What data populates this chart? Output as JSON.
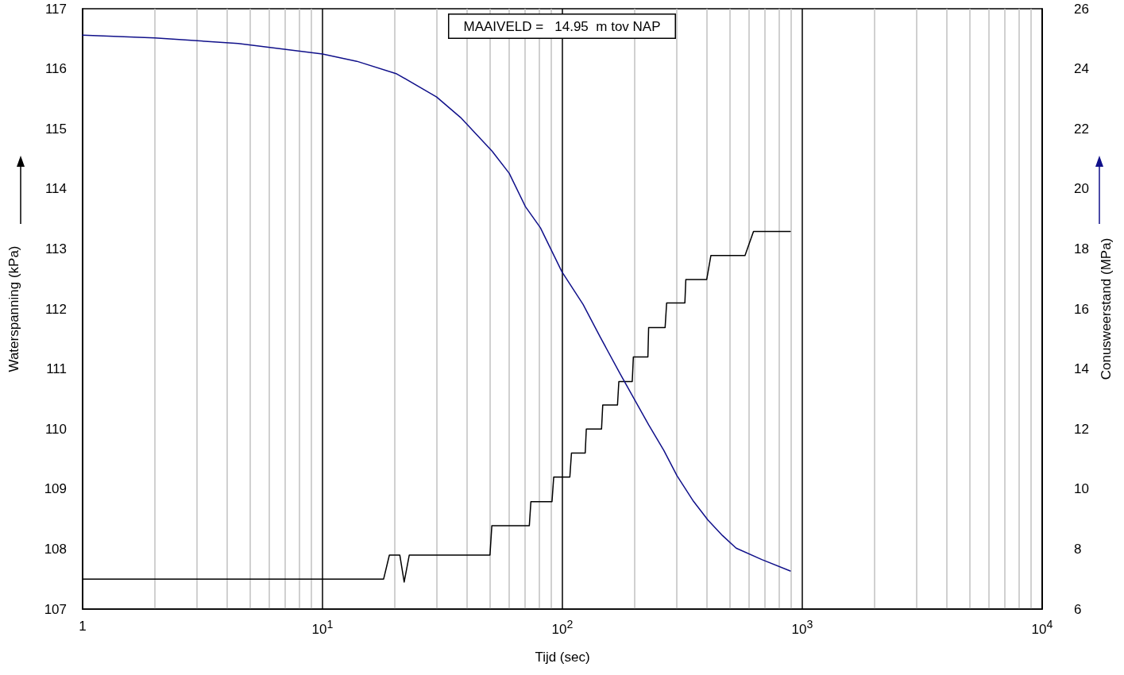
{
  "chart_data": {
    "type": "line",
    "xlabel": "Tijd (sec)",
    "ylabel": "Waterspanning (kPa)",
    "y2label": "Conusweerstand (MPa)",
    "annotations": [
      "MAAIVELD =   14.95  m tov NAP"
    ],
    "log": "x",
    "grid": "x",
    "marker": "none",
    "line_style": "solid",
    "xlim": [
      1,
      10000
    ],
    "xticks": [
      {
        "value": 1,
        "label": "1"
      },
      {
        "value": 2,
        "label": null
      },
      {
        "value": 3,
        "label": null
      },
      {
        "value": 4,
        "label": null
      },
      {
        "value": 5,
        "label": null
      },
      {
        "value": 6,
        "label": null
      },
      {
        "value": 7,
        "label": null
      },
      {
        "value": 8,
        "label": null
      },
      {
        "value": 9,
        "label": null
      },
      {
        "value": 10,
        "label": "10$^{1}$"
      },
      {
        "value": 20,
        "label": null
      },
      {
        "value": 30,
        "label": null
      },
      {
        "value": 40,
        "label": null
      },
      {
        "value": 50,
        "label": null
      },
      {
        "value": 60,
        "label": null
      },
      {
        "value": 70,
        "label": null
      },
      {
        "value": 80,
        "label": null
      },
      {
        "value": 90,
        "label": null
      },
      {
        "value": 100,
        "label": "10$^{2}$"
      },
      {
        "value": 200,
        "label": null
      },
      {
        "value": 300,
        "label": null
      },
      {
        "value": 400,
        "label": null
      },
      {
        "value": 500,
        "label": null
      },
      {
        "value": 600,
        "label": null
      },
      {
        "value": 700,
        "label": null
      },
      {
        "value": 800,
        "label": null
      },
      {
        "value": 900,
        "label": null
      },
      {
        "value": 1000,
        "label": "10$^{3}$"
      },
      {
        "value": 2000,
        "label": null
      },
      {
        "value": 3000,
        "label": null
      },
      {
        "value": 4000,
        "label": null
      },
      {
        "value": 5000,
        "label": null
      },
      {
        "value": 6000,
        "label": null
      },
      {
        "value": 7000,
        "label": null
      },
      {
        "value": 8000,
        "label": null
      },
      {
        "value": 9000,
        "label": null
      },
      {
        "value": 10000,
        "label": "10$^{4}$"
      }
    ],
    "ylim": [
      107,
      117
    ],
    "yticks": [
      107,
      108,
      109,
      110,
      111,
      112,
      113,
      114,
      115,
      116,
      117
    ],
    "y2lim": [
      6,
      26
    ],
    "y2ticks": [
      6,
      8,
      10,
      12,
      14,
      16,
      18,
      20,
      22,
      24,
      26
    ],
    "series": [
      {
        "color": "#000000",
        "x": [
          1,
          17.98,
          19.0,
          21.0,
          21.9,
          23.0,
          49.9,
          50.8,
          72.8,
          73.9,
          90.5,
          92.0,
          107.4,
          109.1,
          124.5,
          125.8,
          145.6,
          147.3,
          169.7,
          171.9,
          195.5,
          197.6,
          227.2,
          228.8,
          268,
          272,
          324,
          327,
          399.6,
          416,
          577,
          626,
          891
        ],
        "values": [
          107.5,
          107.5,
          107.9,
          107.9,
          107.45,
          107.9,
          107.9,
          108.39,
          108.39,
          108.79,
          108.79,
          109.2,
          109.2,
          109.6,
          109.6,
          110.0,
          110.0,
          110.4,
          110.4,
          110.79,
          110.79,
          111.2,
          111.2,
          111.69,
          111.69,
          112.1,
          112.1,
          112.49,
          112.49,
          112.89,
          112.89,
          113.29,
          113.29
        ]
      },
      {
        "color": "#10108a",
        "axis": "y2",
        "x": [
          1,
          2,
          4.45,
          10,
          13.9,
          20.4,
          29.9,
          37.6,
          50.9,
          60,
          70.1,
          81,
          99.5,
          122,
          143.6,
          174,
          228.8,
          264.7,
          300.5,
          352,
          404,
          465,
          530,
          678,
          891
        ],
        "values": [
          25.12,
          25.03,
          24.84,
          24.49,
          24.25,
          23.83,
          23.06,
          22.38,
          21.26,
          20.52,
          19.41,
          18.7,
          17.24,
          16.15,
          15.07,
          13.84,
          12.14,
          11.29,
          10.44,
          9.59,
          8.97,
          8.45,
          8.03,
          7.65,
          7.27
        ]
      }
    ]
  }
}
